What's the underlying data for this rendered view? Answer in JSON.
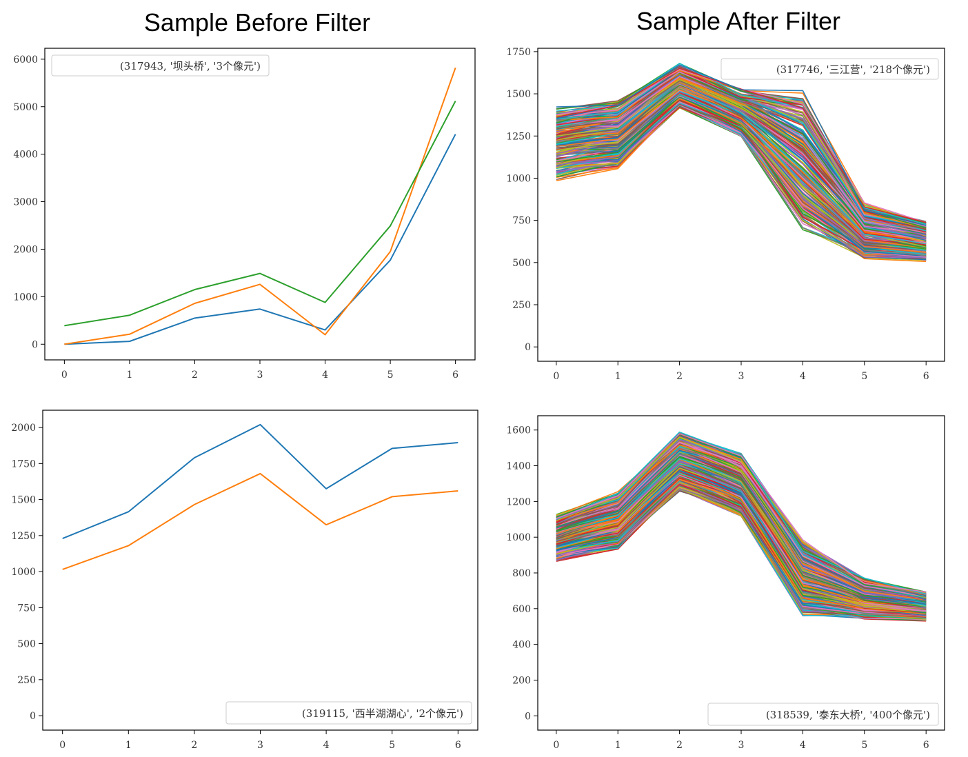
{
  "titles": {
    "left": "Sample Before Filter",
    "right": "Sample After Filter"
  },
  "colors": [
    "#1f77b4",
    "#ff7f0e",
    "#2ca02c",
    "#d62728",
    "#9467bd",
    "#8c564b",
    "#e377c2",
    "#7f7f7f",
    "#bcbd22",
    "#17becf"
  ],
  "chart_data": [
    {
      "id": "tl",
      "type": "line",
      "x": [
        0,
        1,
        2,
        3,
        4,
        5,
        6
      ],
      "ylim": [
        -330,
        6230
      ],
      "yticks": [
        0,
        1000,
        2000,
        3000,
        4000,
        5000,
        6000
      ],
      "legend": "(317943, '坝头桥', '3个像元')",
      "legend_loc": "upper left",
      "series": [
        {
          "values": [
            0,
            60,
            550,
            740,
            300,
            1770,
            4420
          ]
        },
        {
          "values": [
            0,
            210,
            860,
            1260,
            200,
            1950,
            5820
          ]
        },
        {
          "values": [
            390,
            610,
            1150,
            1490,
            880,
            2490,
            5120
          ]
        }
      ]
    },
    {
      "id": "tr",
      "type": "line",
      "x": [
        0,
        1,
        2,
        3,
        4,
        5,
        6
      ],
      "ylim": [
        -85,
        1770
      ],
      "yticks": [
        0,
        250,
        500,
        750,
        1000,
        1250,
        1500,
        1750
      ],
      "legend": "(317746, '三江营', '218个像元')",
      "legend_loc": "upper right",
      "band_count": 218,
      "band_low": [
        985,
        1045,
        1400,
        1240,
        680,
        520,
        505
      ],
      "band_high": [
        1430,
        1470,
        1685,
        1535,
        1530,
        860,
        755
      ]
    },
    {
      "id": "bl",
      "type": "line",
      "x": [
        0,
        1,
        2,
        3,
        4,
        5,
        6
      ],
      "ylim": [
        -100,
        2120
      ],
      "yticks": [
        0,
        250,
        500,
        750,
        1000,
        1250,
        1500,
        1750,
        2000
      ],
      "legend": "(319115, '西半湖湖心', '2个像元')",
      "legend_loc": "lower right",
      "series": [
        {
          "values": [
            1230,
            1415,
            1790,
            2020,
            1575,
            1855,
            1895
          ]
        },
        {
          "values": [
            1015,
            1180,
            1465,
            1680,
            1325,
            1520,
            1560
          ]
        }
      ]
    },
    {
      "id": "br",
      "type": "line",
      "x": [
        0,
        1,
        2,
        3,
        4,
        5,
        6
      ],
      "ylim": [
        -80,
        1680
      ],
      "yticks": [
        0,
        200,
        400,
        600,
        800,
        1000,
        1200,
        1400,
        1600
      ],
      "legend": "(318539, '泰东大桥', '400个像元')",
      "legend_loc": "lower right",
      "band_count": 400,
      "band_low": [
        865,
        925,
        1245,
        1110,
        555,
        540,
        530
      ],
      "band_high": [
        1135,
        1260,
        1600,
        1480,
        985,
        775,
        700
      ]
    }
  ]
}
